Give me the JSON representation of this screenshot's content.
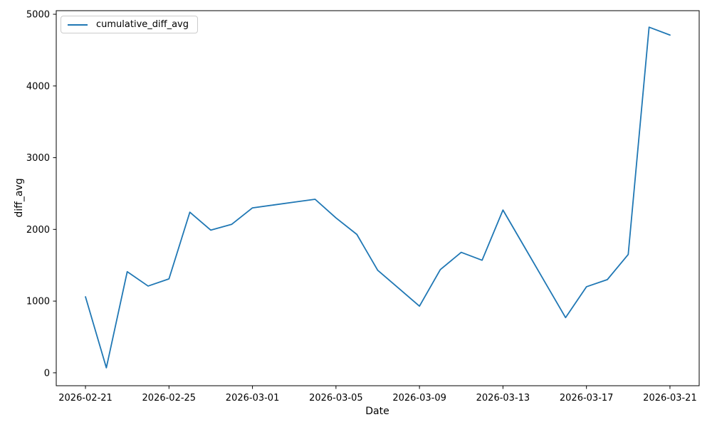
{
  "figure": {
    "background_color": "#ffffff",
    "text_color": "#000000"
  },
  "chart_data": {
    "type": "line",
    "title": "",
    "xlabel": "Date",
    "ylabel": "diff_avg",
    "grid": false,
    "legend_position": "upper-left",
    "line_color": "#1f77b4",
    "x": [
      "2026-02-21",
      "2026-02-22",
      "2026-02-23",
      "2026-02-24",
      "2026-02-25",
      "2026-02-26",
      "2026-02-27",
      "2026-02-28",
      "2026-03-01",
      "2026-03-02",
      "2026-03-03",
      "2026-03-04",
      "2026-03-05",
      "2026-03-06",
      "2026-03-07",
      "2026-03-08",
      "2026-03-09",
      "2026-03-10",
      "2026-03-11",
      "2026-03-12",
      "2026-03-13",
      "2026-03-14",
      "2026-03-15",
      "2026-03-16",
      "2026-03-17",
      "2026-03-18",
      "2026-03-19",
      "2026-03-20",
      "2026-03-21"
    ],
    "series": [
      {
        "name": "cumulative_diff_avg",
        "values": [
          1060,
          70,
          1410,
          1210,
          1310,
          2240,
          1990,
          2070,
          2300,
          2340,
          2380,
          2420,
          2160,
          1930,
          1430,
          1180,
          930,
          1440,
          1680,
          1570,
          2270,
          1770,
          1270,
          770,
          1200,
          1300,
          1650,
          4820,
          4710
        ]
      }
    ],
    "yticks": [
      0,
      1000,
      2000,
      3000,
      4000,
      5000
    ],
    "xtick_labels": [
      "2026-02-21",
      "2026-02-25",
      "2026-03-01",
      "2026-03-05",
      "2026-03-09",
      "2026-03-13",
      "2026-03-17",
      "2026-03-21"
    ],
    "xtick_indices": [
      0,
      4,
      8,
      12,
      16,
      20,
      24,
      28
    ],
    "ylim": [
      -180,
      5050
    ],
    "xlim_index": [
      -1.4,
      29.4
    ]
  }
}
